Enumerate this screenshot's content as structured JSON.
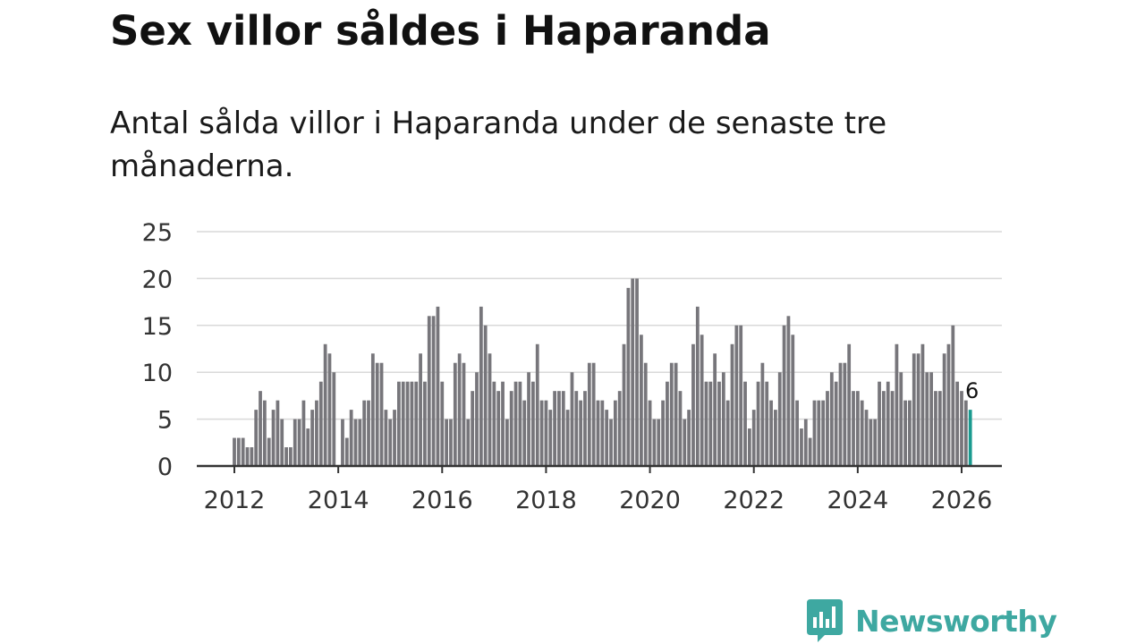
{
  "title": "Sex villor såldes i Haparanda",
  "subtitle": "Antal sålda villor i Haparanda under de senaste tre månaderna.",
  "brand": {
    "name": "Newsworthy",
    "color": "#3ea8a1"
  },
  "colors": {
    "bar": "#77767b",
    "highlight": "#1a9a8f",
    "grid": "#d9d9d9",
    "axis": "#333333"
  },
  "chart_data": {
    "type": "bar",
    "title": "Sex villor såldes i Haparanda",
    "xlabel": "",
    "ylabel": "",
    "ylim": [
      0,
      25
    ],
    "yticks": [
      0,
      5,
      10,
      15,
      20,
      25
    ],
    "xticks": [
      "2012",
      "2014",
      "2016",
      "2018",
      "2020",
      "2022",
      "2024",
      "2026"
    ],
    "start_month": "2012-01",
    "end_month": "2026-03",
    "grid": true,
    "legend": "none",
    "highlight_label": "6",
    "values": [
      3,
      3,
      3,
      2,
      2,
      6,
      8,
      7,
      3,
      6,
      7,
      5,
      2,
      2,
      5,
      5,
      7,
      4,
      6,
      7,
      9,
      13,
      12,
      10,
      0,
      5,
      3,
      6,
      5,
      5,
      7,
      7,
      12,
      11,
      11,
      6,
      5,
      6,
      9,
      9,
      9,
      9,
      9,
      12,
      9,
      16,
      16,
      17,
      9,
      5,
      5,
      11,
      12,
      11,
      5,
      8,
      10,
      17,
      15,
      12,
      9,
      8,
      9,
      5,
      8,
      9,
      9,
      7,
      10,
      9,
      13,
      7,
      7,
      6,
      8,
      8,
      8,
      6,
      10,
      8,
      7,
      8,
      11,
      11,
      7,
      7,
      6,
      5,
      7,
      8,
      13,
      19,
      20,
      20,
      14,
      11,
      7,
      5,
      5,
      7,
      9,
      11,
      11,
      8,
      5,
      6,
      13,
      17,
      14,
      9,
      9,
      12,
      9,
      10,
      7,
      13,
      15,
      15,
      9,
      4,
      6,
      9,
      11,
      9,
      7,
      6,
      10,
      15,
      16,
      14,
      7,
      4,
      5,
      3,
      7,
      7,
      7,
      8,
      10,
      9,
      11,
      11,
      13,
      8,
      8,
      7,
      6,
      5,
      5,
      9,
      8,
      9,
      8,
      13,
      10,
      7,
      7,
      12,
      12,
      13,
      10,
      10,
      8,
      8,
      12,
      13,
      15,
      9,
      8,
      7,
      6
    ]
  }
}
